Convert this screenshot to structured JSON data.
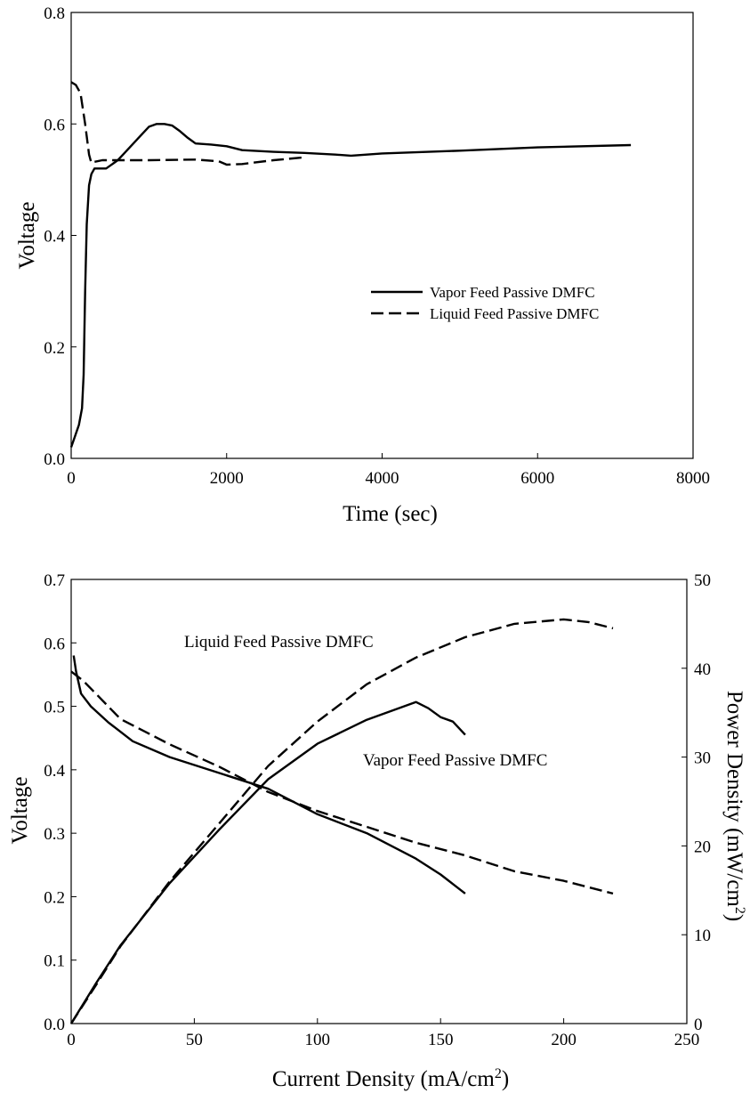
{
  "chart_data": [
    {
      "type": "line",
      "xlabel": "Time (sec)",
      "ylabel": "Voltage",
      "xlim": [
        0,
        8000
      ],
      "ylim": [
        0,
        0.8
      ],
      "xticks": [
        "0",
        "2000",
        "4000",
        "6000",
        "8000"
      ],
      "yticks": [
        "0.0",
        "0.2",
        "0.4",
        "0.6",
        "0.8"
      ],
      "grid": false,
      "legend_position": "center-right",
      "series": [
        {
          "name": "Vapor Feed Passive DMFC",
          "style": "solid",
          "points": [
            [
              0,
              0.02
            ],
            [
              50,
              0.04
            ],
            [
              100,
              0.06
            ],
            [
              140,
              0.09
            ],
            [
              160,
              0.15
            ],
            [
              180,
              0.3
            ],
            [
              200,
              0.42
            ],
            [
              230,
              0.49
            ],
            [
              260,
              0.51
            ],
            [
              300,
              0.52
            ],
            [
              350,
              0.52
            ],
            [
              400,
              0.52
            ],
            [
              450,
              0.52
            ],
            [
              500,
              0.525
            ],
            [
              600,
              0.535
            ],
            [
              700,
              0.55
            ],
            [
              800,
              0.565
            ],
            [
              900,
              0.58
            ],
            [
              1000,
              0.595
            ],
            [
              1100,
              0.6
            ],
            [
              1200,
              0.6
            ],
            [
              1300,
              0.597
            ],
            [
              1400,
              0.587
            ],
            [
              1500,
              0.575
            ],
            [
              1600,
              0.565
            ],
            [
              1800,
              0.563
            ],
            [
              2000,
              0.56
            ],
            [
              2200,
              0.553
            ],
            [
              2600,
              0.55
            ],
            [
              3000,
              0.548
            ],
            [
              3400,
              0.545
            ],
            [
              3600,
              0.543
            ],
            [
              4000,
              0.547
            ],
            [
              5000,
              0.552
            ],
            [
              6000,
              0.558
            ],
            [
              7200,
              0.562
            ]
          ]
        },
        {
          "name": "Liquid Feed Passive DMFC",
          "style": "dashed",
          "points": [
            [
              0,
              0.675
            ],
            [
              60,
              0.67
            ],
            [
              120,
              0.655
            ],
            [
              180,
              0.6
            ],
            [
              230,
              0.545
            ],
            [
              260,
              0.53
            ],
            [
              300,
              0.532
            ],
            [
              400,
              0.535
            ],
            [
              600,
              0.535
            ],
            [
              1000,
              0.535
            ],
            [
              1600,
              0.536
            ],
            [
              1900,
              0.533
            ],
            [
              2000,
              0.527
            ],
            [
              2200,
              0.528
            ],
            [
              2600,
              0.535
            ],
            [
              3000,
              0.54
            ]
          ]
        }
      ]
    },
    {
      "type": "line",
      "xlabel": "Current Density (mA/cm2)",
      "xlabel_main": "Current Density (mA/cm",
      "xlabel_sup": "2",
      "xlabel_end": ")",
      "ylabel": "Voltage",
      "ylabel_right": "Power Density (mW/cm2)",
      "ylabel_right_main": "Power Density (mW/cm",
      "ylabel_right_sup": "2",
      "ylabel_right_end": ")",
      "xlim": [
        0,
        250
      ],
      "ylim": [
        0,
        0.7
      ],
      "ylim_right": [
        0,
        50
      ],
      "xticks": [
        "0",
        "50",
        "100",
        "150",
        "200",
        "250"
      ],
      "yticks": [
        "0.0",
        "0.1",
        "0.2",
        "0.3",
        "0.4",
        "0.5",
        "0.6",
        "0.7"
      ],
      "yticks_right": [
        "0",
        "10",
        "20",
        "30",
        "40",
        "50"
      ],
      "grid": false,
      "annotations": [
        "Liquid Feed Passive DMFC",
        "Vapor Feed Passive DMFC"
      ],
      "series": [
        {
          "name": "Vapor Feed Passive DMFC",
          "measure": "voltage",
          "axis": "left",
          "style": "solid",
          "points": [
            [
              1,
              0.58
            ],
            [
              2,
              0.555
            ],
            [
              4,
              0.52
            ],
            [
              8,
              0.5
            ],
            [
              15,
              0.475
            ],
            [
              25,
              0.445
            ],
            [
              40,
              0.42
            ],
            [
              60,
              0.395
            ],
            [
              80,
              0.37
            ],
            [
              100,
              0.33
            ],
            [
              120,
              0.3
            ],
            [
              140,
              0.26
            ],
            [
              150,
              0.235
            ],
            [
              155,
              0.22
            ],
            [
              160,
              0.205
            ]
          ]
        },
        {
          "name": "Liquid Feed Passive DMFC",
          "measure": "voltage",
          "axis": "left",
          "style": "dashed",
          "points": [
            [
              0,
              0.555
            ],
            [
              5,
              0.54
            ],
            [
              10,
              0.52
            ],
            [
              20,
              0.48
            ],
            [
              40,
              0.44
            ],
            [
              60,
              0.405
            ],
            [
              80,
              0.365
            ],
            [
              100,
              0.335
            ],
            [
              120,
              0.31
            ],
            [
              140,
              0.285
            ],
            [
              160,
              0.265
            ],
            [
              180,
              0.24
            ],
            [
              200,
              0.225
            ],
            [
              220,
              0.205
            ]
          ]
        },
        {
          "name": "Vapor Feed Passive DMFC",
          "measure": "power",
          "axis": "right",
          "style": "solid",
          "points": [
            [
              0,
              0
            ],
            [
              10,
              4.5
            ],
            [
              20,
              8.8
            ],
            [
              40,
              15.8
            ],
            [
              60,
              21.8
            ],
            [
              80,
              27.5
            ],
            [
              100,
              31.5
            ],
            [
              120,
              34.2
            ],
            [
              140,
              36.2
            ],
            [
              145,
              35.5
            ],
            [
              150,
              34.5
            ],
            [
              155,
              34
            ],
            [
              160,
              32.5
            ]
          ]
        },
        {
          "name": "Liquid Feed Passive DMFC",
          "measure": "power",
          "axis": "right",
          "style": "dashed",
          "points": [
            [
              0,
              0
            ],
            [
              10,
              4.3
            ],
            [
              20,
              8.7
            ],
            [
              40,
              16
            ],
            [
              60,
              22.5
            ],
            [
              80,
              29
            ],
            [
              100,
              34
            ],
            [
              120,
              38.2
            ],
            [
              140,
              41.2
            ],
            [
              160,
              43.5
            ],
            [
              180,
              45
            ],
            [
              200,
              45.5
            ],
            [
              210,
              45.2
            ],
            [
              220,
              44.5
            ]
          ]
        }
      ]
    }
  ]
}
